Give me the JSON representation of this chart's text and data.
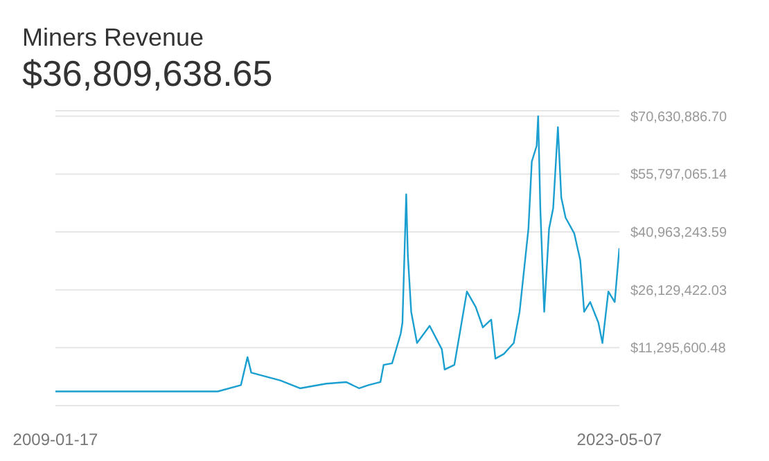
{
  "chart_data": {
    "type": "line",
    "title": "Miners Revenue",
    "subtitle": "$36,809,638.65",
    "x": [
      "2009-01-17",
      "2013-03-01",
      "2013-10-01",
      "2013-12-01",
      "2014-01-05",
      "2014-10-01",
      "2015-04-01",
      "2015-12-01",
      "2016-06-01",
      "2016-10-01",
      "2016-12-25",
      "2017-04-15",
      "2017-05-15",
      "2017-08-01",
      "2017-10-20",
      "2017-11-05",
      "2017-12-10",
      "2017-12-25",
      "2018-01-25",
      "2018-03-20",
      "2018-07-15",
      "2018-11-05",
      "2018-12-01",
      "2019-03-01",
      "2019-06-25",
      "2019-09-15",
      "2019-11-20",
      "2020-02-05",
      "2020-03-15",
      "2020-06-01",
      "2020-09-01",
      "2020-10-25",
      "2021-01-15",
      "2021-02-15",
      "2021-04-01",
      "2021-04-15",
      "2021-05-05",
      "2021-06-10",
      "2021-07-25",
      "2021-09-01",
      "2021-10-15",
      "2021-11-15",
      "2021-12-25",
      "2022-03-15",
      "2022-05-10",
      "2022-06-15",
      "2022-08-10",
      "2022-10-25",
      "2022-12-01",
      "2023-01-25",
      "2023-03-25",
      "2023-05-07"
    ],
    "series": [
      {
        "color": "#1a9fd0",
        "values": [
          100000,
          100000,
          1700000,
          8900000,
          4900000,
          2900000,
          900000,
          2100000,
          2500000,
          900000,
          1700000,
          2500000,
          6900000,
          7300000,
          14900000,
          17700000,
          50600000,
          35000000,
          20500000,
          12500000,
          16900000,
          10900000,
          5700000,
          6900000,
          25700000,
          21700000,
          16500000,
          18500000,
          8500000,
          9700000,
          12500000,
          20500000,
          41800000,
          59000000,
          63000000,
          70600000,
          47000000,
          20500000,
          41800000,
          47000000,
          67800000,
          49800000,
          44600000,
          40600000,
          33700000,
          20500000,
          23000000,
          17700000,
          12500000,
          25700000,
          23000000,
          36800000
        ]
      }
    ],
    "xlim": [
      "2009-01-17",
      "2023-05-07"
    ],
    "xticks": [
      {
        "value": "2009-01-17",
        "label": "2009-01-17"
      },
      {
        "value": "2023-05-07",
        "label": "2023-05-07"
      }
    ],
    "ylim": [
      -3537821,
      72000000
    ],
    "yticks": [
      {
        "value": -3537821,
        "label": null
      },
      {
        "value": 11295600.48,
        "label": "$11,295,600.48"
      },
      {
        "value": 26129422.03,
        "label": "$26,129,422.03"
      },
      {
        "value": 40963243.59,
        "label": "$40,963,243.59"
      },
      {
        "value": 55797065.14,
        "label": "$55,797,065.14"
      },
      {
        "value": 70630886.7,
        "label": "$70,630,886.70"
      }
    ],
    "grid": "y",
    "marker": "none",
    "line_style": "solid"
  }
}
